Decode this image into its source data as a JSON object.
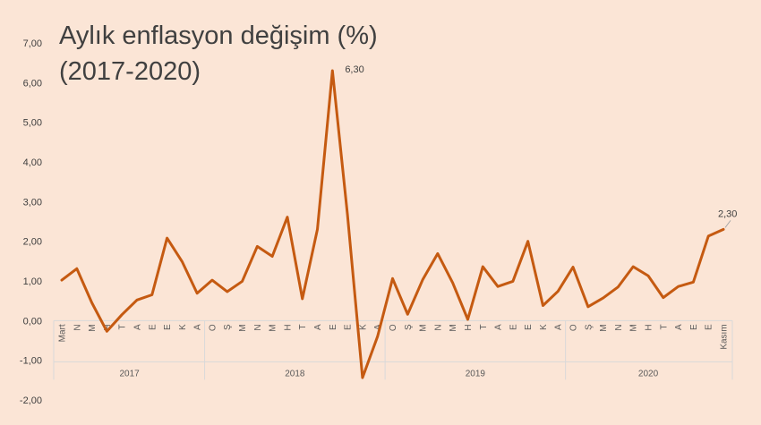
{
  "chart_data": {
    "type": "line",
    "title_line1": "Aylık enflasyon değişim (%)",
    "title_line2": "(2017-2020)",
    "ylim": [
      -2,
      7
    ],
    "y_ticks": [
      "-2,00",
      "-1,00",
      "0,00",
      "1,00",
      "2,00",
      "3,00",
      "4,00",
      "5,00",
      "6,00",
      "7,00"
    ],
    "grid": false,
    "line_color": "#c55a11",
    "categories": [
      "Mart",
      "N",
      "M",
      "H",
      "T",
      "A",
      "E",
      "E",
      "K",
      "A",
      "O",
      "Ş",
      "M",
      "N",
      "M",
      "H",
      "T",
      "A",
      "E",
      "E",
      "K",
      "A",
      "O",
      "Ş",
      "M",
      "N",
      "M",
      "H",
      "T",
      "A",
      "E",
      "E",
      "K",
      "A",
      "O",
      "Ş",
      "M",
      "N",
      "M",
      "H",
      "T",
      "A",
      "E",
      "E",
      "Kasım"
    ],
    "years": [
      {
        "label": "2017",
        "start": 0,
        "end": 9
      },
      {
        "label": "2018",
        "start": 10,
        "end": 21
      },
      {
        "label": "2019",
        "start": 22,
        "end": 33
      },
      {
        "label": "2020",
        "start": 34,
        "end": 44
      }
    ],
    "values": [
      1.02,
      1.31,
      0.45,
      -0.27,
      0.15,
      0.52,
      0.65,
      2.08,
      1.49,
      0.69,
      1.02,
      0.73,
      0.99,
      1.87,
      1.62,
      2.61,
      0.55,
      2.3,
      6.3,
      2.67,
      -1.44,
      -0.4,
      1.06,
      0.16,
      1.03,
      1.69,
      0.95,
      0.03,
      1.36,
      0.86,
      0.99,
      2.0,
      0.38,
      0.74,
      1.35,
      0.35,
      0.57,
      0.85,
      1.36,
      1.13,
      0.58,
      0.86,
      0.97,
      2.13,
      2.3
    ],
    "data_labels": [
      {
        "index": 18,
        "text": "6,30"
      },
      {
        "index": 44,
        "text": "2,30"
      }
    ]
  }
}
